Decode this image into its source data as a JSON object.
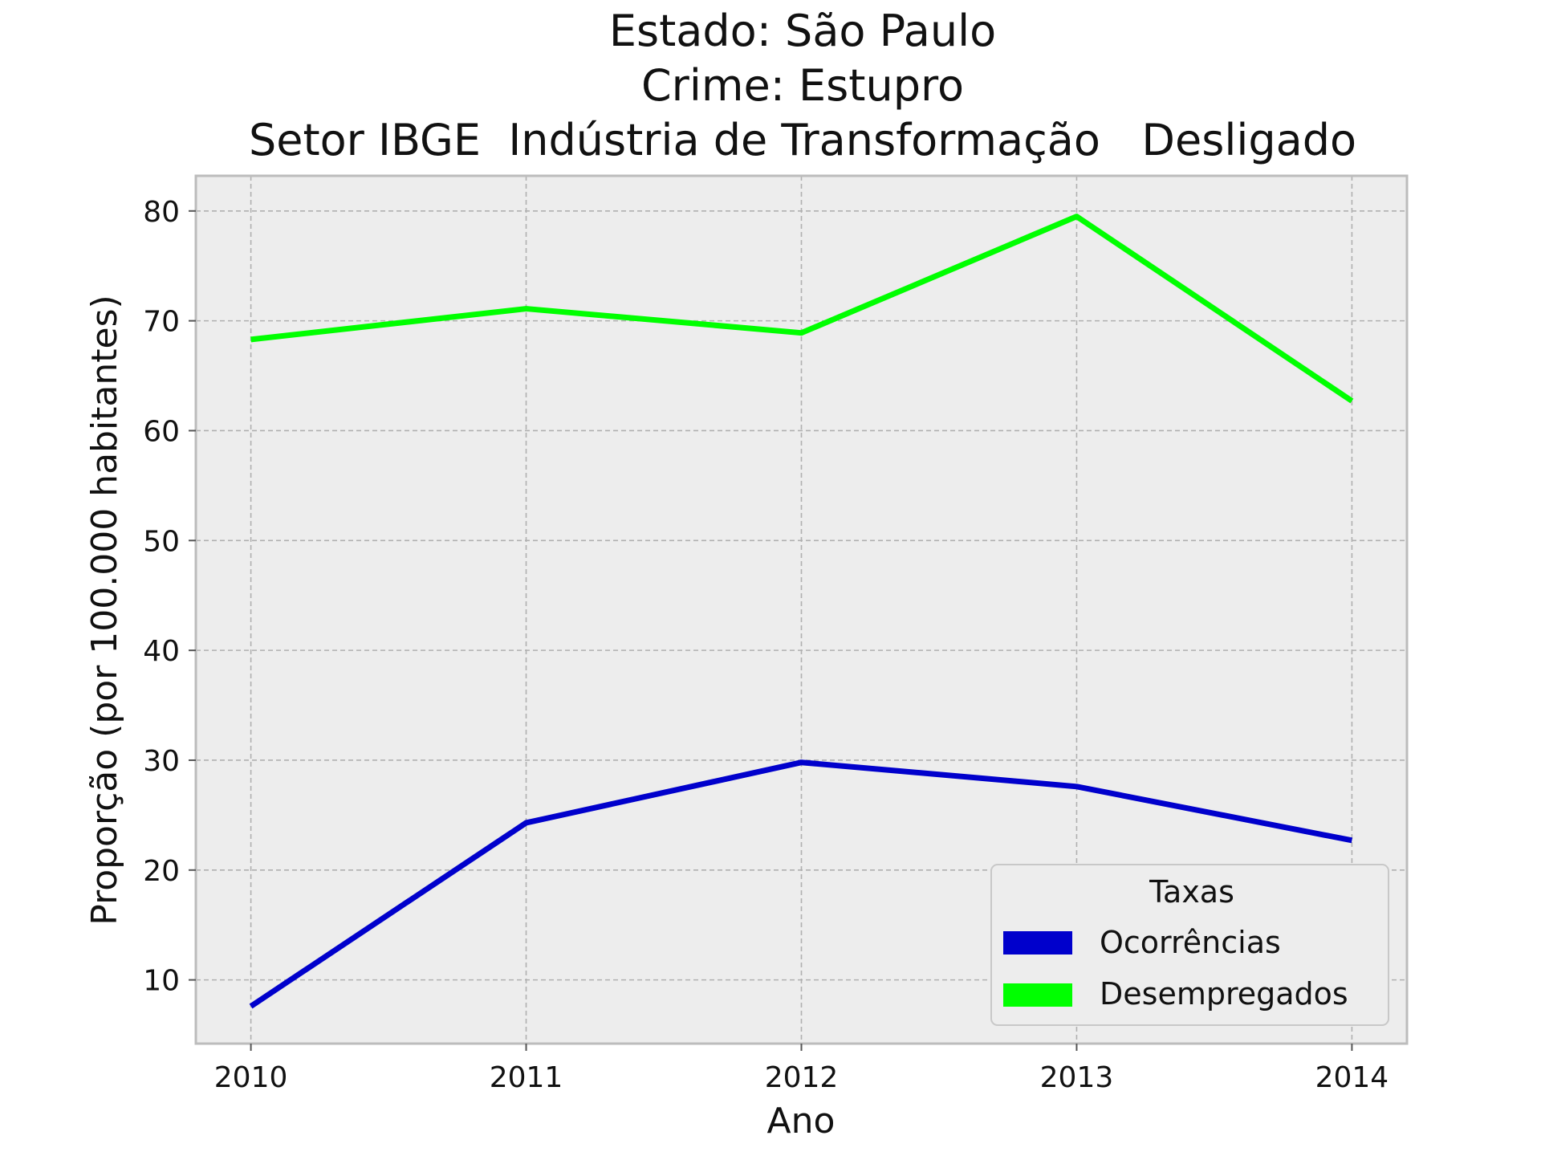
{
  "chart_data": {
    "type": "line",
    "title_lines": [
      "Estado: São Paulo",
      "Crime: Estupro",
      "Setor IBGE  Indústria de Transformação   Desligado"
    ],
    "xlabel": "Ano",
    "ylabel": "Proporção (por 100.000 habitantes)",
    "x": [
      2010,
      2011,
      2012,
      2013,
      2014
    ],
    "x_tick_labels": [
      "2010",
      "2011",
      "2012",
      "2013",
      "2014"
    ],
    "y_ticks": [
      10,
      20,
      30,
      40,
      50,
      60,
      70,
      80
    ],
    "y_tick_labels": [
      "10",
      "20",
      "30",
      "40",
      "50",
      "60",
      "70",
      "80"
    ],
    "xlim": [
      2009.8,
      2014.2
    ],
    "ylim": [
      4.2,
      83.2
    ],
    "grid": true,
    "legend": {
      "title": "Taxas",
      "placement": "lower-right"
    },
    "series": [
      {
        "name": "Ocorrências",
        "color": "#0000cc",
        "values": [
          7.6,
          24.3,
          29.8,
          27.6,
          22.7
        ]
      },
      {
        "name": "Desempregados",
        "color": "#00ff00",
        "values": [
          68.3,
          71.1,
          68.9,
          79.5,
          62.7
        ]
      }
    ],
    "colors": {
      "plot_background": "#ededed",
      "grid": "#b0b0b0",
      "frame": "#bcbcbc"
    }
  }
}
